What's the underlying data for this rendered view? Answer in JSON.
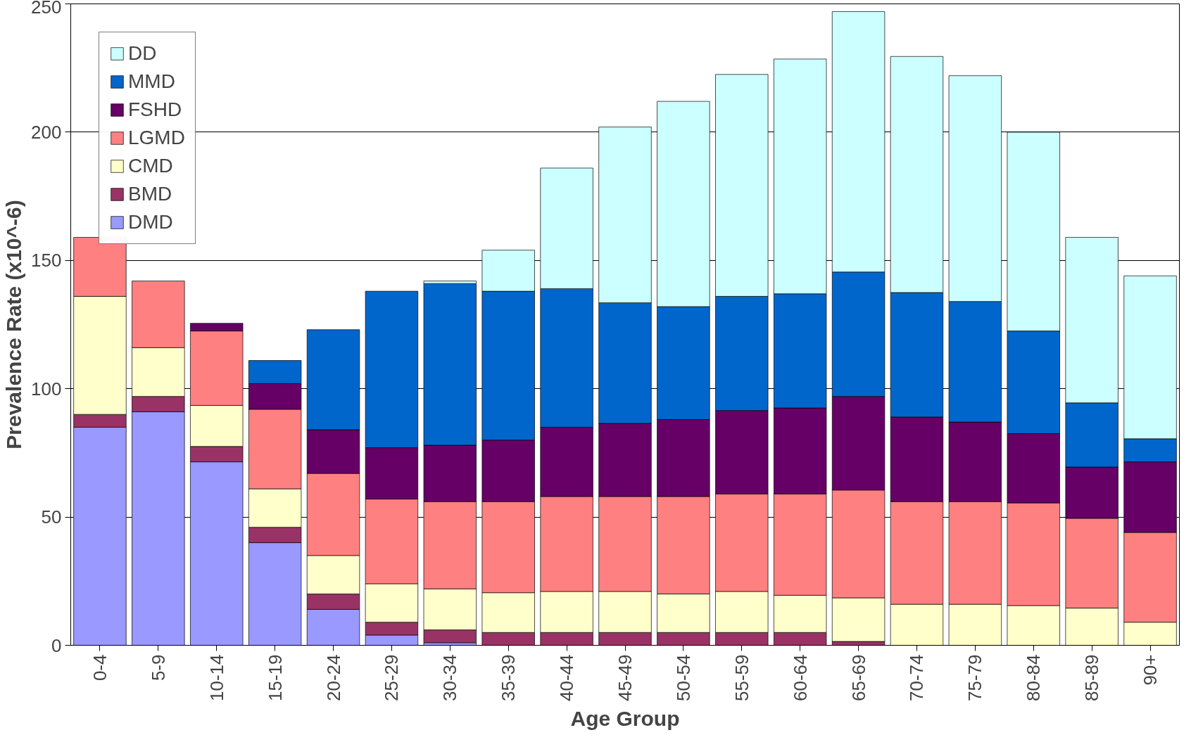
{
  "chart_data": {
    "type": "bar",
    "stacked": true,
    "xlabel": "Age Group",
    "ylabel": "Prevalence Rate (x10^-6)",
    "categories": [
      "0-4",
      "5-9",
      "10-14",
      "15-19",
      "20-24",
      "25-29",
      "30-34",
      "35-39",
      "40-44",
      "45-49",
      "50-54",
      "55-59",
      "60-64",
      "65-69",
      "70-74",
      "75-79",
      "80-84",
      "85-89",
      "90+"
    ],
    "series": [
      {
        "name": "DMD",
        "color": "#9999ff",
        "values": [
          85,
          91,
          71.5,
          40,
          14,
          4,
          1,
          0,
          0,
          0,
          0,
          0,
          0,
          0,
          0,
          0,
          0,
          0,
          0
        ]
      },
      {
        "name": "BMD",
        "color": "#993366",
        "values": [
          5,
          6,
          6,
          6,
          6,
          5,
          5,
          5,
          5,
          5,
          5,
          5,
          5,
          1.5,
          0,
          0,
          0,
          0,
          0
        ]
      },
      {
        "name": "CMD",
        "color": "#ffffcc",
        "values": [
          46,
          19,
          16,
          15,
          15,
          15,
          16,
          15.5,
          16,
          16,
          15,
          16,
          14.5,
          17,
          16,
          16,
          15.5,
          14.5,
          9
        ]
      },
      {
        "name": "LGMD",
        "color": "#ff8080",
        "values": [
          23,
          26,
          29,
          31,
          32,
          33,
          34,
          35.5,
          37,
          37,
          38,
          38,
          39.5,
          42,
          40,
          40,
          40,
          35,
          35
        ]
      },
      {
        "name": "FSHD",
        "color": "#660066",
        "values": [
          0,
          0,
          3,
          10,
          17,
          20,
          22,
          24,
          27,
          28.5,
          30,
          32.5,
          33.5,
          36.5,
          33,
          31,
          27,
          20,
          27.5
        ]
      },
      {
        "name": "MMD",
        "color": "#0066cc",
        "values": [
          0,
          0,
          0,
          9,
          39,
          61,
          63,
          58,
          54,
          47,
          44,
          44.5,
          44.5,
          48.5,
          48.5,
          47,
          40,
          25,
          9
        ]
      },
      {
        "name": "DD",
        "color": "#ccffff",
        "values": [
          0,
          0,
          0,
          0,
          0,
          0,
          1,
          16,
          47,
          68.5,
          80,
          86.5,
          91.5,
          101.5,
          92,
          88,
          77.5,
          64.5,
          63.5
        ]
      }
    ],
    "ylim": [
      0,
      250
    ],
    "yticks": [
      0,
      50,
      100,
      150,
      200,
      250
    ],
    "grid": "y",
    "legend": "top left"
  }
}
